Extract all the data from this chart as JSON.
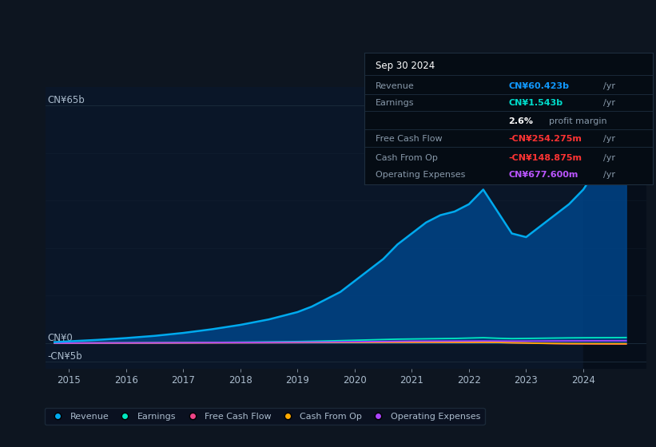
{
  "background_color": "#0d1520",
  "plot_bg_color": "#0a1628",
  "title": "Sep 30 2024",
  "ylim": [
    -7000000000.0,
    70000000000.0
  ],
  "xticks": [
    2015,
    2016,
    2017,
    2018,
    2019,
    2020,
    2021,
    2022,
    2023,
    2024
  ],
  "xlim": [
    2014.6,
    2025.1
  ],
  "ytick_positions": [
    -5000000000.0,
    0,
    65000000000.0
  ],
  "ytick_labels": [
    "-CN¥5b",
    "CN¥0",
    "CN¥65b"
  ],
  "years": [
    2014.75,
    2015.0,
    2015.5,
    2016.0,
    2016.5,
    2017.0,
    2017.5,
    2018.0,
    2018.5,
    2019.0,
    2019.25,
    2019.5,
    2019.75,
    2020.0,
    2020.25,
    2020.5,
    2020.75,
    2021.0,
    2021.25,
    2021.5,
    2021.75,
    2022.0,
    2022.25,
    2022.5,
    2022.75,
    2023.0,
    2023.25,
    2023.5,
    2023.75,
    2024.0,
    2024.25,
    2024.5,
    2024.75
  ],
  "revenue": [
    300000000.0,
    500000000.0,
    900000000.0,
    1400000000.0,
    2000000000.0,
    2800000000.0,
    3800000000.0,
    5000000000.0,
    6500000000.0,
    8500000000.0,
    10000000000.0,
    12000000000.0,
    14000000000.0,
    17000000000.0,
    20000000000.0,
    23000000000.0,
    27000000000.0,
    30000000000.0,
    33000000000.0,
    35000000000.0,
    36000000000.0,
    38000000000.0,
    42000000000.0,
    36000000000.0,
    30000000000.0,
    29000000000.0,
    32000000000.0,
    35000000000.0,
    38000000000.0,
    42000000000.0,
    48000000000.0,
    55000000000.0,
    60423000000.0
  ],
  "earnings": [
    20000000.0,
    30000000.0,
    50000000.0,
    70000000.0,
    100000000.0,
    150000000.0,
    200000000.0,
    280000000.0,
    360000000.0,
    450000000.0,
    520000000.0,
    600000000.0,
    700000000.0,
    800000000.0,
    900000000.0,
    1000000000.0,
    1100000000.0,
    1150000000.0,
    1200000000.0,
    1250000000.0,
    1300000000.0,
    1400000000.0,
    1500000000.0,
    1350000000.0,
    1250000000.0,
    1300000000.0,
    1350000000.0,
    1400000000.0,
    1450000000.0,
    1480000000.0,
    1500000000.0,
    1520000000.0,
    1543000000.0
  ],
  "free_cash_flow": [
    10000000.0,
    20000000.0,
    30000000.0,
    40000000.0,
    50000000.0,
    70000000.0,
    90000000.0,
    110000000.0,
    130000000.0,
    150000000.0,
    160000000.0,
    170000000.0,
    180000000.0,
    190000000.0,
    200000000.0,
    210000000.0,
    220000000.0,
    220000000.0,
    230000000.0,
    220000000.0,
    210000000.0,
    200000000.0,
    220000000.0,
    180000000.0,
    100000000.0,
    50000000.0,
    -50000000.0,
    -120000000.0,
    -180000000.0,
    -200000000.0,
    -220000000.0,
    -240000000.0,
    -254275000.0
  ],
  "cash_from_op": [
    20000000.0,
    30000000.0,
    40000000.0,
    50000000.0,
    70000000.0,
    90000000.0,
    110000000.0,
    130000000.0,
    150000000.0,
    170000000.0,
    180000000.0,
    190000000.0,
    200000000.0,
    210000000.0,
    220000000.0,
    230000000.0,
    240000000.0,
    250000000.0,
    260000000.0,
    250000000.0,
    240000000.0,
    230000000.0,
    250000000.0,
    200000000.0,
    120000000.0,
    50000000.0,
    -30000000.0,
    -80000000.0,
    -110000000.0,
    -120000000.0,
    -130000000.0,
    -140000000.0,
    -148875000.0
  ],
  "operating_expenses": [
    30000000.0,
    40000000.0,
    60000000.0,
    80000000.0,
    100000000.0,
    130000000.0,
    160000000.0,
    200000000.0,
    240000000.0,
    280000000.0,
    300000000.0,
    320000000.0,
    350000000.0,
    380000000.0,
    420000000.0,
    460000000.0,
    500000000.0,
    540000000.0,
    550000000.0,
    560000000.0,
    570000000.0,
    580000000.0,
    600000000.0,
    580000000.0,
    560000000.0,
    570000000.0,
    590000000.0,
    620000000.0,
    640000000.0,
    650000000.0,
    660000000.0,
    670000000.0,
    677600000.0
  ],
  "revenue_color": "#00aaee",
  "revenue_fill_color": "#004488",
  "earnings_color": "#00e8c0",
  "free_cash_flow_color": "#ee4488",
  "cash_from_op_color": "#ffaa00",
  "operating_expenses_color": "#aa44ff",
  "grid_color": "#1a2a3a",
  "text_color": "#8899aa",
  "label_color": "#aabbcc",
  "info_box_bg": "#050c14",
  "info_box_border": "#1e2e3e",
  "info_revenue_color": "#1199ff",
  "info_earnings_color": "#00ddcc",
  "info_profit_color": "#ffffff",
  "info_fcf_color": "#ff3333",
  "info_cashop_color": "#ff3333",
  "info_opex_color": "#bb55ff",
  "legend_bg": "#0a1020",
  "legend_border": "#1e2e3e",
  "shade_start": 2024.0,
  "shade_color": "#060e1a"
}
